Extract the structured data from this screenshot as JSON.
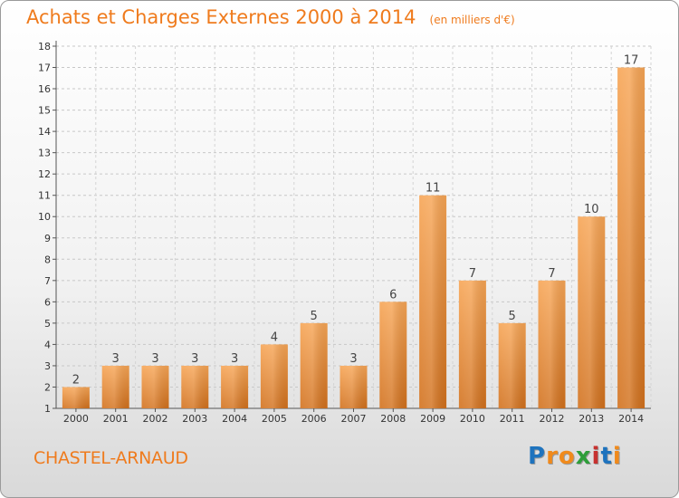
{
  "title": "Achats et Charges Externes 2000 à 2014",
  "subtitle": "(en milliers d'€)",
  "commune": "CHASTEL-ARNAUD",
  "logo": {
    "text": "Proxiti",
    "letter_colors": [
      "#1e73be",
      "#f08a1c",
      "#f08a1c",
      "#2e9e3a",
      "#c7312f",
      "#1e73be",
      "#f08a1c"
    ]
  },
  "colors": {
    "bar_light": "#f7a555",
    "bar_dark": "#d2711d",
    "accent": "#ef7b1d"
  },
  "chart_data": {
    "type": "bar",
    "categories": [
      "2000",
      "2001",
      "2002",
      "2003",
      "2004",
      "2005",
      "2006",
      "2007",
      "2008",
      "2009",
      "2010",
      "2011",
      "2012",
      "2013",
      "2014"
    ],
    "values": [
      2,
      3,
      3,
      3,
      3,
      4,
      5,
      3,
      6,
      11,
      7,
      5,
      7,
      10,
      17
    ],
    "ylim": [
      1,
      18
    ],
    "yticks": [
      1,
      2,
      3,
      4,
      5,
      6,
      7,
      8,
      9,
      10,
      11,
      12,
      13,
      14,
      15,
      16,
      17,
      18
    ],
    "grid": true,
    "data_labels": true
  }
}
